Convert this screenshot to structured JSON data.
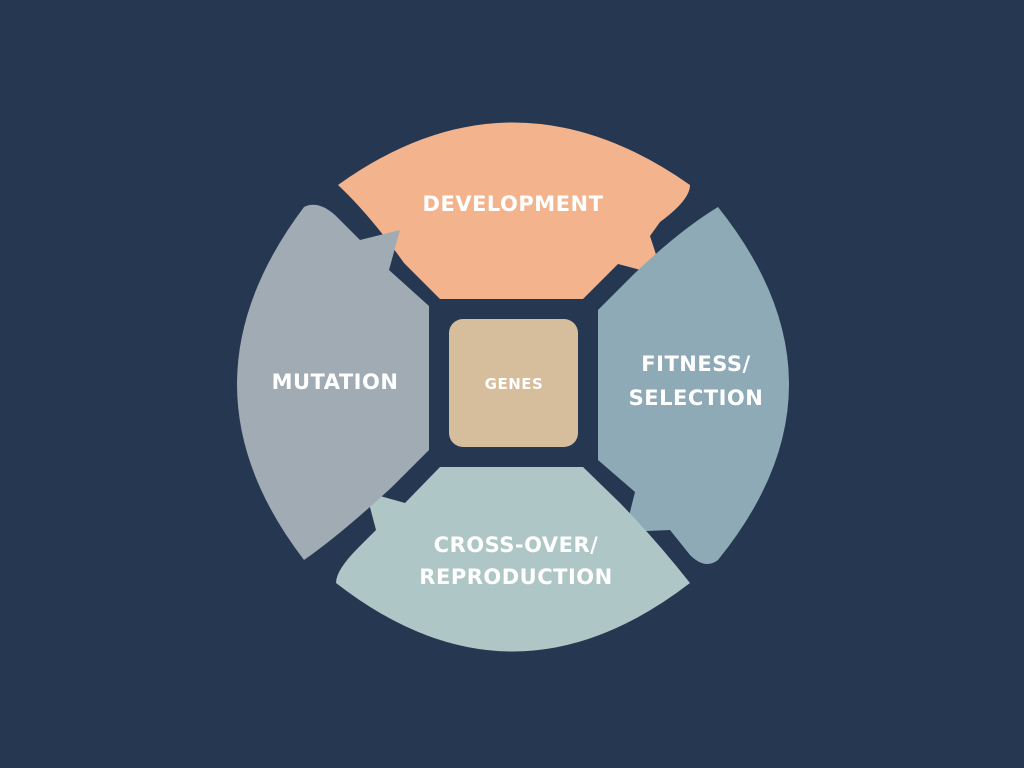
{
  "diagram": {
    "center": {
      "label": "GENES",
      "color": "#d6bd9c"
    },
    "segments": {
      "development": {
        "line1": "DEVELOPMENT",
        "color": "#f2b38d"
      },
      "fitness": {
        "line1": "FITNESS/",
        "line2": "SELECTION",
        "color": "#8daab6"
      },
      "crossover": {
        "line1": "CROSS-OVER/",
        "line2": "REPRODUCTION",
        "color": "#afc6c6"
      },
      "mutation": {
        "line1": "MUTATION",
        "color": "#a0abb3"
      }
    },
    "background_color": "#263751"
  }
}
